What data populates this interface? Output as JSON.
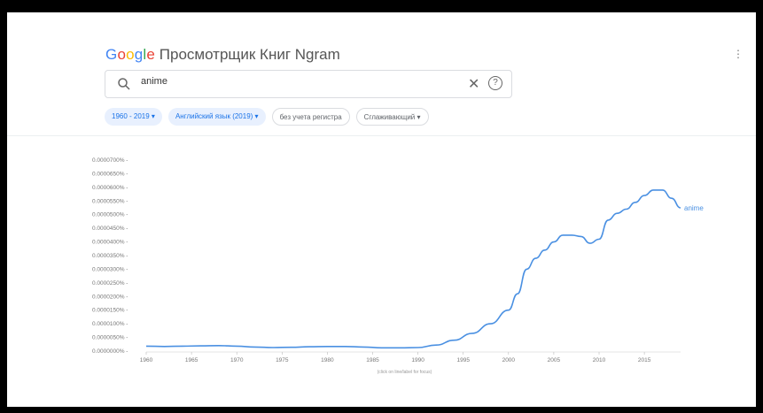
{
  "header": {
    "logo_letters": [
      "G",
      "o",
      "o",
      "g",
      "l",
      "e"
    ],
    "title": "Просмотрщик Книг Ngram",
    "menu_icon": "more-vert-icon"
  },
  "search": {
    "value": "anime",
    "icon": "search-icon",
    "clear_icon": "close-icon",
    "help_icon": "help-icon",
    "help_glyph": "?",
    "clear_glyph": "✕"
  },
  "filters": {
    "years": "1960 - 2019 ▾",
    "corpus": "Английский язык (2019) ▾",
    "case": "без учета регистра",
    "smoothing": "Сглаживающий ▾"
  },
  "colors": {
    "series": "#4a90e2",
    "accent": "#1a73e8"
  },
  "chart_data": {
    "type": "line",
    "x_ticks": [
      "1960",
      "1965",
      "1970",
      "1975",
      "1980",
      "1985",
      "1990",
      "1995",
      "2000",
      "2005",
      "2010",
      "2015"
    ],
    "y_ticks": [
      "0.0000000%",
      "0.0000050%",
      "0.0000100%",
      "0.0000150%",
      "0.0000200%",
      "0.0000250%",
      "0.0000300%",
      "0.0000350%",
      "0.0000400%",
      "0.0000450%",
      "0.0000500%",
      "0.0000550%",
      "0.0000600%",
      "0.0000650%",
      "0.0000700%"
    ],
    "xlim": [
      1960,
      2019
    ],
    "ylim": [
      0,
      7e-07
    ],
    "hint": "(click on line/label for focus)",
    "series": [
      {
        "name": "anime",
        "x": [
          1960,
          1962,
          1964,
          1966,
          1968,
          1970,
          1972,
          1974,
          1976,
          1978,
          1980,
          1982,
          1984,
          1986,
          1988,
          1990,
          1992,
          1994,
          1996,
          1998,
          2000,
          2001,
          2002,
          2003,
          2004,
          2005,
          2006,
          2007,
          2008,
          2009,
          2010,
          2011,
          2012,
          2013,
          2014,
          2015,
          2016,
          2017,
          2018,
          2019
        ],
        "y": [
          1.8e-08,
          1.7e-08,
          1.8e-08,
          1.9e-08,
          2e-08,
          1.8e-08,
          1.5e-08,
          1.3e-08,
          1.4e-08,
          1.6e-08,
          1.7e-08,
          1.7e-08,
          1.5e-08,
          1.2e-08,
          1.2e-08,
          1.3e-08,
          2.2e-08,
          4e-08,
          6.5e-08,
          1e-07,
          1.5e-07,
          2.1e-07,
          3e-07,
          3.4e-07,
          3.7e-07,
          4e-07,
          4.25e-07,
          4.25e-07,
          4.2e-07,
          3.95e-07,
          4.1e-07,
          4.8e-07,
          5.05e-07,
          5.2e-07,
          5.45e-07,
          5.7e-07,
          5.9e-07,
          5.9e-07,
          5.6e-07,
          5.25e-07
        ]
      }
    ]
  }
}
